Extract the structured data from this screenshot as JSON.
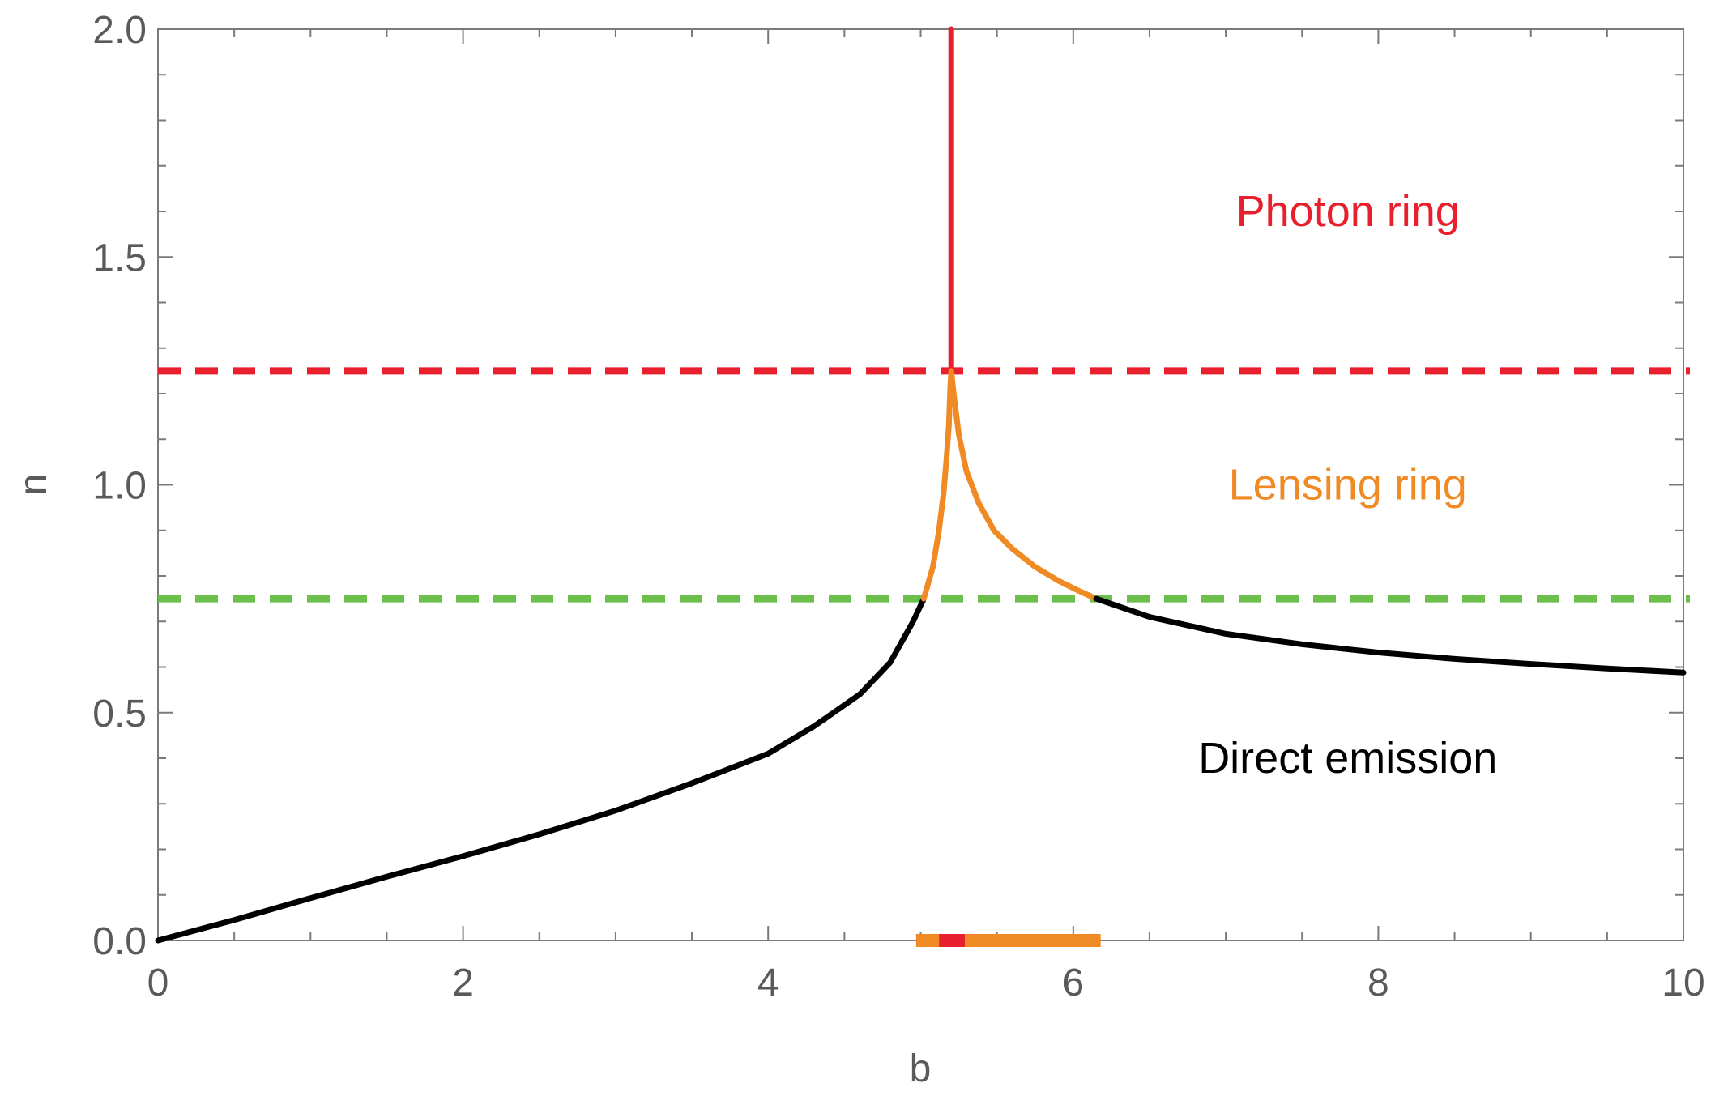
{
  "chart_data": {
    "type": "line",
    "title": "",
    "xlabel": "b",
    "ylabel": "n",
    "xlim": [
      0,
      10
    ],
    "ylim": [
      0,
      2
    ],
    "x_ticks": [
      "0",
      "2",
      "4",
      "6",
      "8",
      "10"
    ],
    "y_ticks": [
      "0.0",
      "0.5",
      "1.0",
      "1.5",
      "2.0"
    ],
    "grid": false,
    "colors": {
      "direct": "#000000",
      "lensing": "#f08a24",
      "photon": "#e8202e",
      "threshold_photon": "#e8202e",
      "threshold_lensing": "#6cbf4a"
    },
    "reference_lines": [
      {
        "y": 1.25,
        "style": "dashed",
        "color": "#e8202e"
      },
      {
        "y": 0.75,
        "style": "dashed",
        "color": "#6cbf4a"
      }
    ],
    "series": [
      {
        "segment": "direct-left",
        "color": "#000000",
        "x": [
          0,
          0.5,
          1,
          1.5,
          2,
          2.5,
          3,
          3.5,
          4,
          4.3,
          4.6,
          4.8,
          4.95,
          5.02
        ],
        "y": [
          0,
          0.045,
          0.093,
          0.14,
          0.185,
          0.233,
          0.285,
          0.345,
          0.41,
          0.47,
          0.54,
          0.61,
          0.7,
          0.75
        ]
      },
      {
        "segment": "lensing-left",
        "color": "#f08a24",
        "x": [
          5.02,
          5.08,
          5.12,
          5.15,
          5.17,
          5.185,
          5.19,
          5.195,
          5.2
        ],
        "y": [
          0.75,
          0.82,
          0.9,
          0.98,
          1.06,
          1.13,
          1.18,
          1.22,
          1.25
        ]
      },
      {
        "segment": "photon-ring",
        "color": "#e8202e",
        "x": [
          5.2,
          5.2,
          5.2
        ],
        "y": [
          1.25,
          1.7,
          2.0
        ]
      },
      {
        "segment": "lensing-right",
        "color": "#f08a24",
        "x": [
          5.2,
          5.22,
          5.25,
          5.3,
          5.38,
          5.48,
          5.6,
          5.75,
          5.9,
          6.02,
          6.15
        ],
        "y": [
          1.25,
          1.19,
          1.11,
          1.03,
          0.96,
          0.9,
          0.86,
          0.82,
          0.79,
          0.77,
          0.75
        ]
      },
      {
        "segment": "direct-right",
        "color": "#000000",
        "x": [
          6.15,
          6.5,
          7,
          7.5,
          8,
          8.5,
          9,
          9.5,
          10
        ],
        "y": [
          0.75,
          0.71,
          0.673,
          0.65,
          0.632,
          0.618,
          0.607,
          0.597,
          0.588
        ]
      }
    ],
    "bottom_bar": [
      {
        "x0": 4.97,
        "x1": 5.12,
        "color": "#f08a24"
      },
      {
        "x0": 5.12,
        "x1": 5.29,
        "color": "#e8202e"
      },
      {
        "x0": 5.29,
        "x1": 6.18,
        "color": "#f08a24"
      }
    ],
    "annotations": [
      {
        "text": "Photon ring",
        "x": 7.8,
        "y": 1.6,
        "color": "#e8202e"
      },
      {
        "text": "Lensing ring",
        "x": 7.8,
        "y": 1.0,
        "color": "#f08a24"
      },
      {
        "text": "Direct emission",
        "x": 7.8,
        "y": 0.4,
        "color": "#000000"
      }
    ]
  }
}
